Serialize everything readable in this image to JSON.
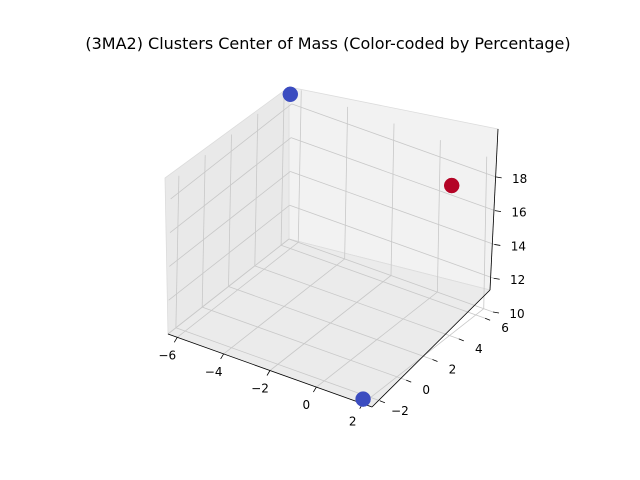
{
  "chart_data": {
    "type": "scatter",
    "title": "(3MA2) Clusters Center of Mass (Color-coded by Percentage)",
    "xlabel": "",
    "ylabel": "",
    "zlabel": "",
    "x_ticks": [
      "−6",
      "−4",
      "−2",
      "0",
      "2"
    ],
    "y_ticks": [
      "−2",
      "0",
      "2",
      "4",
      "6"
    ],
    "z_ticks": [
      "10",
      "12",
      "14",
      "16",
      "18"
    ],
    "xlim": [
      -6.4,
      2.4
    ],
    "ylim": [
      -2.6,
      6.6
    ],
    "zlim": [
      10,
      19
    ],
    "grid": true,
    "colormap": "coolwarm",
    "points": [
      {
        "x": -6.3,
        "y": 6.3,
        "z": 18.8,
        "color": "#3b4cc0"
      },
      {
        "x": 1.8,
        "y": 4.3,
        "z": 18.6,
        "color": "#b40426"
      },
      {
        "x": 1.9,
        "y": -2.4,
        "z": 10.1,
        "color": "#3b4cc0"
      }
    ]
  }
}
